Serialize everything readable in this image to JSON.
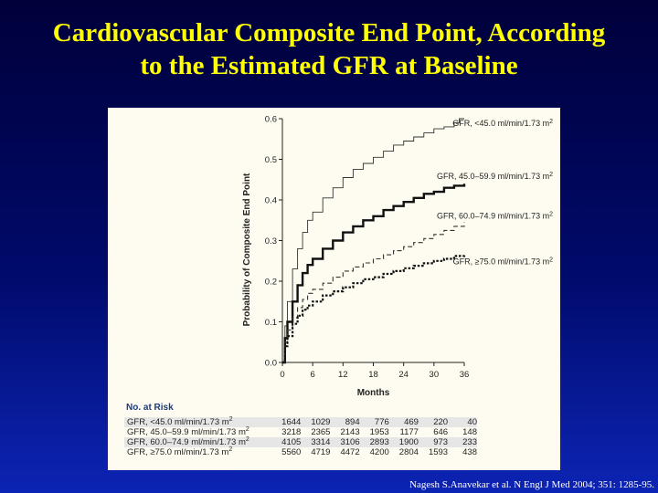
{
  "slide": {
    "title_line1": "Cardiovascular Composite End Point, According",
    "title_line2": "to the Estimated GFR at Baseline",
    "citation": "Nagesh S.Anavekar et al. N Engl J Med 2004; 351: 1285-95."
  },
  "chart_data": {
    "type": "line",
    "title": "Cardiovascular Composite End Point, According to the Estimated GFR at Baseline",
    "xlabel": "Months",
    "ylabel": "Probability of Composite End Point",
    "xlim": [
      0,
      36
    ],
    "ylim": [
      0,
      0.6
    ],
    "xticks": [
      0,
      6,
      12,
      18,
      24,
      30,
      36
    ],
    "yticks": [
      0.0,
      0.1,
      0.2,
      0.3,
      0.4,
      0.5,
      0.6
    ],
    "grid": false,
    "series": [
      {
        "name": "GFR, <45.0 ml/min/1.73 m2",
        "style": "thin-solid",
        "x": [
          0,
          0.5,
          1,
          2,
          3,
          4,
          5,
          6,
          8,
          10,
          12,
          14,
          16,
          18,
          20,
          22,
          24,
          26,
          28,
          30,
          32,
          34,
          35,
          36
        ],
        "y": [
          0,
          0.09,
          0.15,
          0.23,
          0.28,
          0.32,
          0.35,
          0.37,
          0.405,
          0.43,
          0.455,
          0.475,
          0.49,
          0.505,
          0.52,
          0.535,
          0.545,
          0.555,
          0.565,
          0.575,
          0.58,
          0.59,
          0.6,
          0.6
        ]
      },
      {
        "name": "GFR, 45.0–59.9 ml/min/1.73 m2",
        "style": "thick-solid",
        "x": [
          0,
          0.5,
          1,
          2,
          3,
          4,
          5,
          6,
          8,
          10,
          12,
          14,
          16,
          18,
          20,
          22,
          24,
          26,
          28,
          30,
          32,
          34,
          36
        ],
        "y": [
          0,
          0.06,
          0.1,
          0.15,
          0.19,
          0.22,
          0.24,
          0.255,
          0.28,
          0.3,
          0.32,
          0.335,
          0.35,
          0.36,
          0.375,
          0.385,
          0.395,
          0.405,
          0.415,
          0.42,
          0.43,
          0.435,
          0.44
        ]
      },
      {
        "name": "GFR, 60.0–74.9 ml/min/1.73 m2",
        "style": "dashed",
        "x": [
          0,
          0.5,
          1,
          2,
          3,
          4,
          5,
          6,
          8,
          10,
          12,
          14,
          16,
          18,
          20,
          22,
          24,
          26,
          28,
          30,
          32,
          34,
          36
        ],
        "y": [
          0,
          0.05,
          0.08,
          0.11,
          0.135,
          0.155,
          0.17,
          0.18,
          0.195,
          0.21,
          0.225,
          0.235,
          0.245,
          0.255,
          0.265,
          0.275,
          0.285,
          0.295,
          0.305,
          0.315,
          0.325,
          0.335,
          0.345
        ]
      },
      {
        "name": "GFR, ≥75.0 ml/min/1.73 m2",
        "style": "thick-dotted",
        "x": [
          0,
          0.5,
          1,
          2,
          3,
          4,
          5,
          6,
          8,
          10,
          12,
          14,
          16,
          18,
          20,
          22,
          24,
          26,
          28,
          30,
          32,
          34,
          36
        ],
        "y": [
          0,
          0.04,
          0.065,
          0.095,
          0.115,
          0.13,
          0.14,
          0.15,
          0.165,
          0.175,
          0.185,
          0.195,
          0.205,
          0.21,
          0.218,
          0.225,
          0.232,
          0.238,
          0.244,
          0.25,
          0.255,
          0.262,
          0.268
        ]
      }
    ],
    "at_risk": {
      "title": "No. at Risk",
      "rows": [
        {
          "label": "GFR, <45.0 ml/min/1.73 m2",
          "values": [
            "1644",
            "1029",
            "894",
            "776",
            "469",
            "220",
            "40"
          ]
        },
        {
          "label": "GFR, 45.0–59.9 ml/min/1.73 m2",
          "values": [
            "3218",
            "2365",
            "2143",
            "1953",
            "1177",
            "646",
            "148"
          ]
        },
        {
          "label": "GFR, 60.0–74.9 ml/min/1.73 m2",
          "values": [
            "4105",
            "3314",
            "3106",
            "2893",
            "1900",
            "973",
            "233"
          ]
        },
        {
          "label": "GFR, ≥75.0 ml/min/1.73 m2",
          "values": [
            "5560",
            "4719",
            "4472",
            "4200",
            "2804",
            "1593",
            "438"
          ]
        }
      ]
    }
  }
}
